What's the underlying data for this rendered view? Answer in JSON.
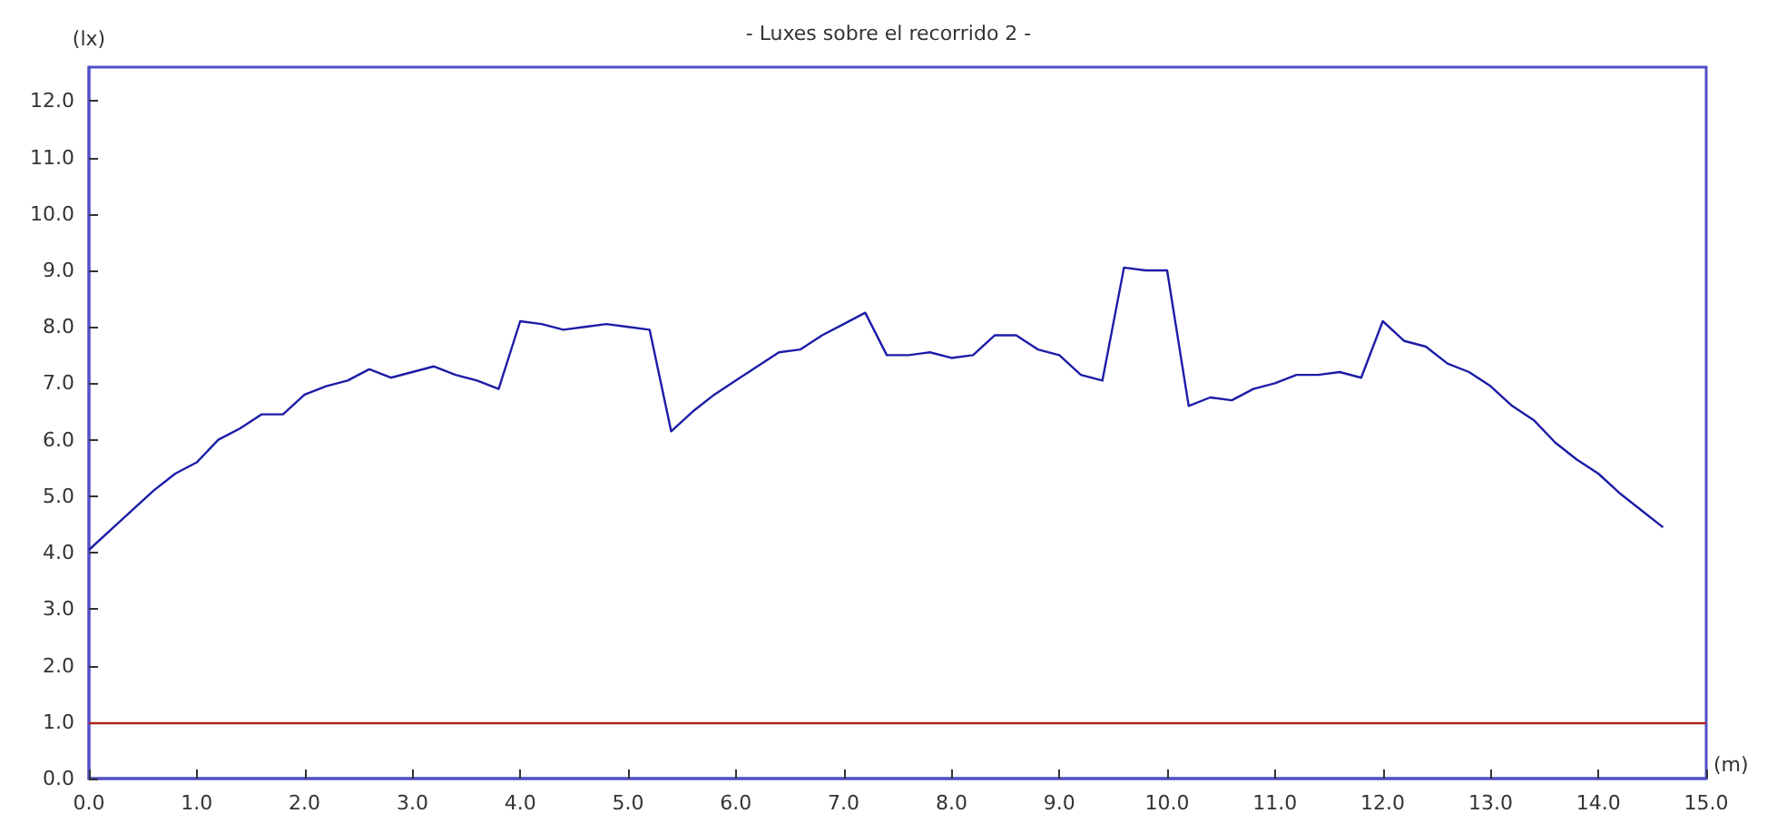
{
  "chart_data": {
    "type": "line",
    "title": "- Luxes sobre el recorrido 2 -",
    "xlabel": "(m)",
    "ylabel": "(lx)",
    "x": [
      0,
      0.2,
      0.4,
      0.6,
      0.8,
      1.0,
      1.2,
      1.4,
      1.6,
      1.8,
      2.0,
      2.2,
      2.4,
      2.6,
      2.8,
      3.0,
      3.2,
      3.4,
      3.6,
      3.8,
      4.0,
      4.2,
      4.4,
      4.6,
      4.8,
      5.0,
      5.2,
      5.4,
      5.6,
      5.8,
      6.0,
      6.2,
      6.4,
      6.6,
      6.8,
      7.0,
      7.2,
      7.4,
      7.6,
      7.8,
      8.0,
      8.2,
      8.4,
      8.6,
      8.8,
      9.0,
      9.2,
      9.4,
      9.6,
      9.8,
      10.0,
      10.2,
      10.4,
      10.6,
      10.8,
      11.0,
      11.2,
      11.4,
      11.6,
      11.8,
      12.0,
      12.2,
      12.4,
      12.6,
      12.8,
      13.0,
      13.2,
      13.4,
      13.6,
      13.8,
      14.0,
      14.2,
      14.4,
      14.6
    ],
    "series": [
      {
        "color": "#1c1ca8",
        "values": [
          4.05,
          4.4,
          4.75,
          5.1,
          5.4,
          5.6,
          6.0,
          6.2,
          6.45,
          6.45,
          6.8,
          6.95,
          7.05,
          7.25,
          7.1,
          7.2,
          7.3,
          7.15,
          7.05,
          6.9,
          8.1,
          8.05,
          7.95,
          8.0,
          8.05,
          8.0,
          7.95,
          6.15,
          6.5,
          6.8,
          7.05,
          7.3,
          7.55,
          7.6,
          7.85,
          8.05,
          8.25,
          7.5,
          7.5,
          7.55,
          7.45,
          7.5,
          7.85,
          7.85,
          7.6,
          7.5,
          7.15,
          7.05,
          9.05,
          9.0,
          9.0,
          6.6,
          6.75,
          6.7,
          6.9,
          7.0,
          7.15,
          7.15,
          7.2,
          7.1,
          8.1,
          7.75,
          7.65,
          7.35,
          7.2,
          6.95,
          6.6,
          6.35,
          5.95,
          5.65,
          5.4,
          5.05,
          4.75,
          4.45
        ]
      }
    ],
    "xlim": [
      0,
      15
    ],
    "xticks": [
      {
        "value": 0,
        "label": "0.0"
      },
      {
        "value": 1,
        "label": "1.0"
      },
      {
        "value": 2,
        "label": "2.0"
      },
      {
        "value": 3,
        "label": "3.0"
      },
      {
        "value": 4,
        "label": "4.0"
      },
      {
        "value": 5,
        "label": "5.0"
      },
      {
        "value": 6,
        "label": "6.0"
      },
      {
        "value": 7,
        "label": "7.0"
      },
      {
        "value": 8,
        "label": "8.0"
      },
      {
        "value": 9,
        "label": "9.0"
      },
      {
        "value": 10,
        "label": "10.0"
      },
      {
        "value": 11,
        "label": "11.0"
      },
      {
        "value": 12,
        "label": "12.0"
      },
      {
        "value": 13,
        "label": "13.0"
      },
      {
        "value": 14,
        "label": "14.0"
      },
      {
        "value": 15,
        "label": "15.0"
      }
    ],
    "ylim": [
      0,
      12.6
    ],
    "yticks": [
      {
        "value": 0,
        "label": "0.0"
      },
      {
        "value": 1,
        "label": "1.0"
      },
      {
        "value": 2,
        "label": "2.0"
      },
      {
        "value": 3,
        "label": "3.0"
      },
      {
        "value": 4,
        "label": "4.0"
      },
      {
        "value": 5,
        "label": "5.0"
      },
      {
        "value": 6,
        "label": "6.0"
      },
      {
        "value": 7,
        "label": "7.0"
      },
      {
        "value": 8,
        "label": "8.0"
      },
      {
        "value": 9,
        "label": "9.0"
      },
      {
        "value": 10,
        "label": "10.0"
      },
      {
        "value": 11,
        "label": "11.0"
      },
      {
        "value": 12,
        "label": "12.0"
      }
    ],
    "ref_lines": [
      {
        "axis": "y",
        "value": 1,
        "color": "#b22222"
      }
    ],
    "grid": false,
    "marker": "none",
    "line_style": "solid"
  }
}
